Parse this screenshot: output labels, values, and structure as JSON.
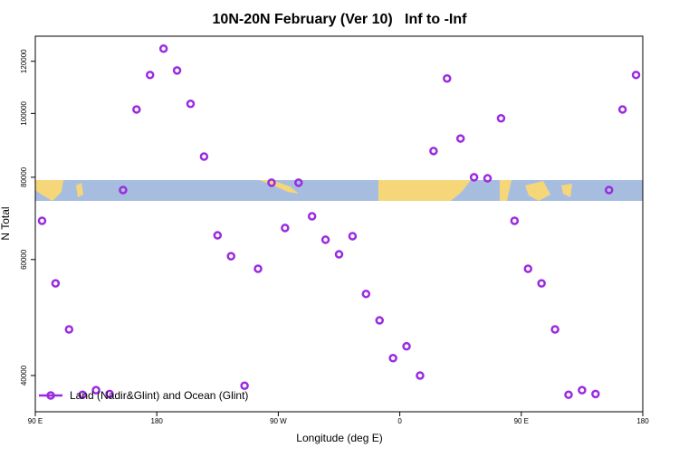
{
  "chart_data": {
    "type": "scatter",
    "title": "10N-20N February (Ver 10)   Inf to -Inf",
    "xlabel": "Longitude (deg E)",
    "ylabel": "N Total",
    "x": [
      95,
      105,
      115,
      125,
      135,
      145,
      155,
      165,
      175,
      185,
      195,
      205,
      215,
      225,
      235,
      245,
      255,
      265,
      275,
      285,
      295,
      305,
      315,
      325,
      335,
      345,
      355,
      365,
      375,
      385,
      395,
      405,
      415,
      425,
      435,
      445,
      455,
      465,
      475,
      485,
      495,
      505,
      515,
      525,
      535
    ],
    "series": [
      {
        "name": "Land (Nadir&Glint) and Ocean (Glint)",
        "color": "#9b2be0",
        "values": [
          68700,
          55200,
          47000,
          37400,
          38000,
          37500,
          76500,
          101400,
          114400,
          125400,
          116200,
          103400,
          86000,
          65300,
          60700,
          38600,
          58100,
          78500,
          67000,
          78500,
          69800,
          64300,
          61100,
          65100,
          53200,
          48500,
          42500,
          44300,
          40000,
          87700,
          113000,
          91600,
          80000,
          79700,
          98300,
          68700,
          58100,
          55200,
          47000,
          37400,
          38000,
          37500,
          76500,
          101400,
          114400
        ]
      }
    ],
    "xlim": [
      90,
      540
    ],
    "xticks": [
      {
        "value": 90,
        "label": "90 E"
      },
      180,
      {
        "value": 270,
        "label": "90 W"
      },
      {
        "value": 360,
        "label": "0"
      },
      {
        "value": 450,
        "label": "90 E"
      },
      {
        "value": 540,
        "label": "180"
      }
    ],
    "ylim": [
      35240,
      131000
    ],
    "yticks": [
      40000,
      60000,
      80000,
      100000,
      120000
    ],
    "yscale": "log",
    "legend": "bottom-left"
  }
}
